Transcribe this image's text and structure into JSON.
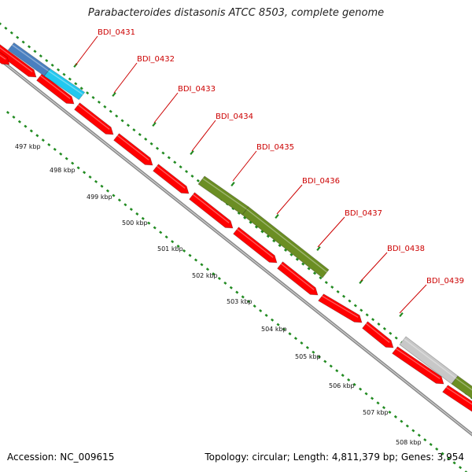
{
  "title": "Parabacteroides distasonis ATCC 8503, complete genome",
  "footer": {
    "accession": "Accession: NC_009615",
    "summary": "Topology: circular; Length: 4,811,379 bp; Genes: 3,954"
  },
  "colors": {
    "cds": "#ff0000",
    "rrna": "#6b8e23",
    "gene_blue_dark": "#4a7fbf",
    "gene_blue_light": "#22c8ef",
    "pseudo": "#c8c8c8",
    "backbone": "#888888",
    "ticks": "#228b22",
    "gene_label": "#cc0000"
  },
  "gene_labels": [
    "BDI_0431",
    "BDI_0432",
    "BDI_0433",
    "BDI_0434",
    "BDI_0435",
    "BDI_0436",
    "BDI_0437",
    "BDI_0438",
    "BDI_0439"
  ],
  "kbp_labels": [
    "497 kbp",
    "498 kbp",
    "499 kbp",
    "500 kbp",
    "501 kbp",
    "502 kbp",
    "503 kbp",
    "504 kbp",
    "505 kbp",
    "506 kbp",
    "507 kbp",
    "508 kbp"
  ]
}
